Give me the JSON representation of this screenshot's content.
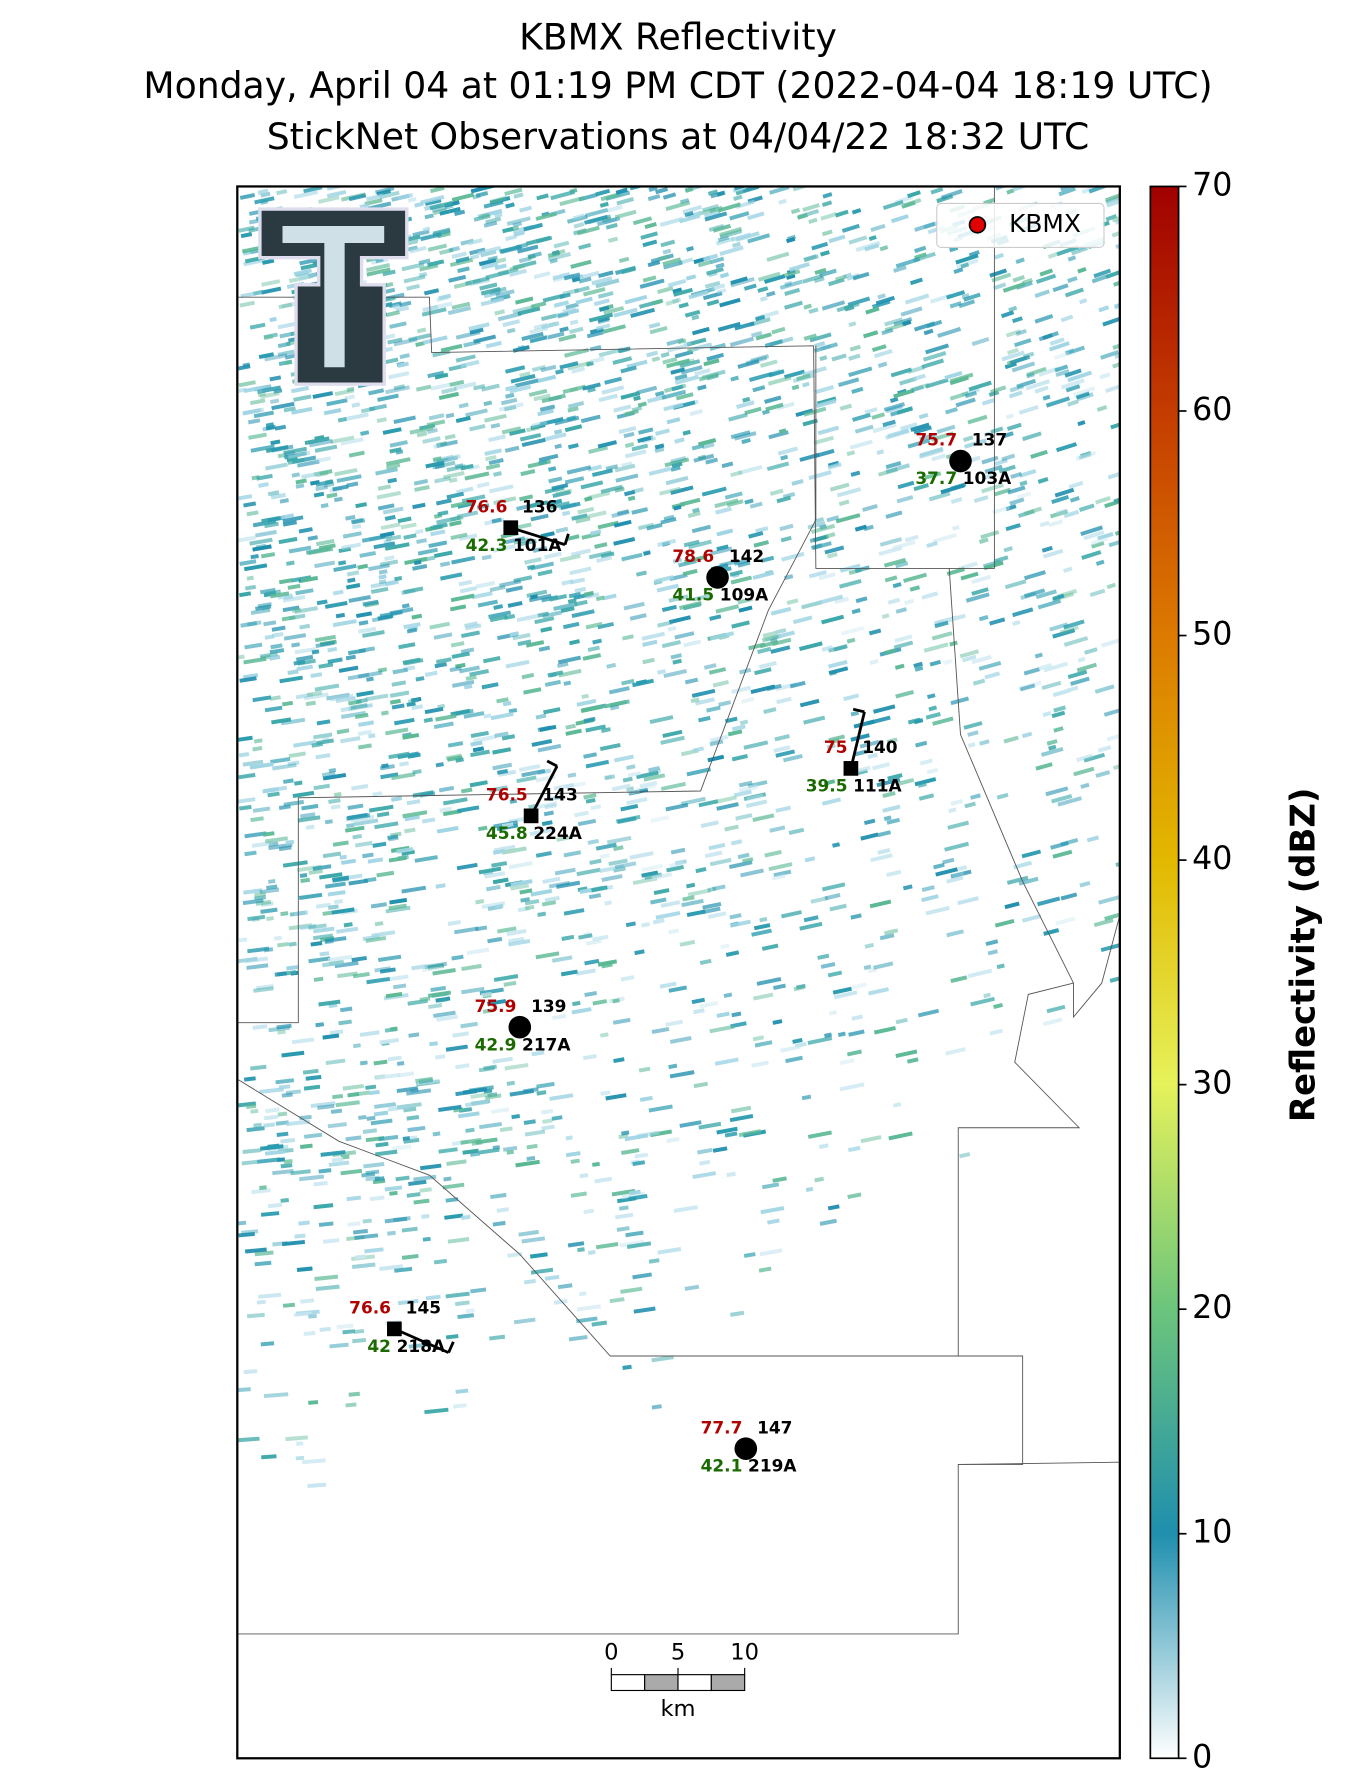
{
  "title": [
    "KBMX Reflectivity",
    "Monday, April 04 at 01:19 PM CDT (2022-04-04 18:19 UTC)",
    "StickNet Observations at 04/04/22 18:32 UTC"
  ],
  "legend": {
    "label": "KBMX",
    "color": "#e00000"
  },
  "colorbar": {
    "label": "Reflectivity (dBZ)",
    "lim": [
      0,
      70
    ],
    "ticks": [
      0,
      10,
      20,
      30,
      40,
      50,
      60,
      70
    ]
  },
  "stations": [
    {
      "id": "103A",
      "temperature": 75.7,
      "dewpoint": 37.7,
      "value": 137,
      "marker": "circle"
    },
    {
      "id": "101A",
      "temperature": 76.6,
      "dewpoint": 42.3,
      "value": 136,
      "marker": "square"
    },
    {
      "id": "109A",
      "temperature": 78.6,
      "dewpoint": 41.5,
      "value": 142,
      "marker": "circle"
    },
    {
      "id": "111A",
      "temperature": 75.0,
      "dewpoint": 39.5,
      "value": 140,
      "marker": "square"
    },
    {
      "id": "224A",
      "temperature": 76.5,
      "dewpoint": 45.8,
      "value": 143,
      "marker": "square"
    },
    {
      "id": "217A",
      "temperature": 75.9,
      "dewpoint": 42.9,
      "value": 139,
      "marker": "circle"
    },
    {
      "id": "218A",
      "temperature": 76.6,
      "dewpoint": 42.0,
      "value": 145,
      "marker": "square"
    },
    {
      "id": "219A",
      "temperature": 77.7,
      "dewpoint": 42.1,
      "value": 147,
      "marker": "circle"
    }
  ],
  "scale_bar": {
    "ticks": [
      0,
      5,
      10
    ],
    "unit": "km"
  }
}
